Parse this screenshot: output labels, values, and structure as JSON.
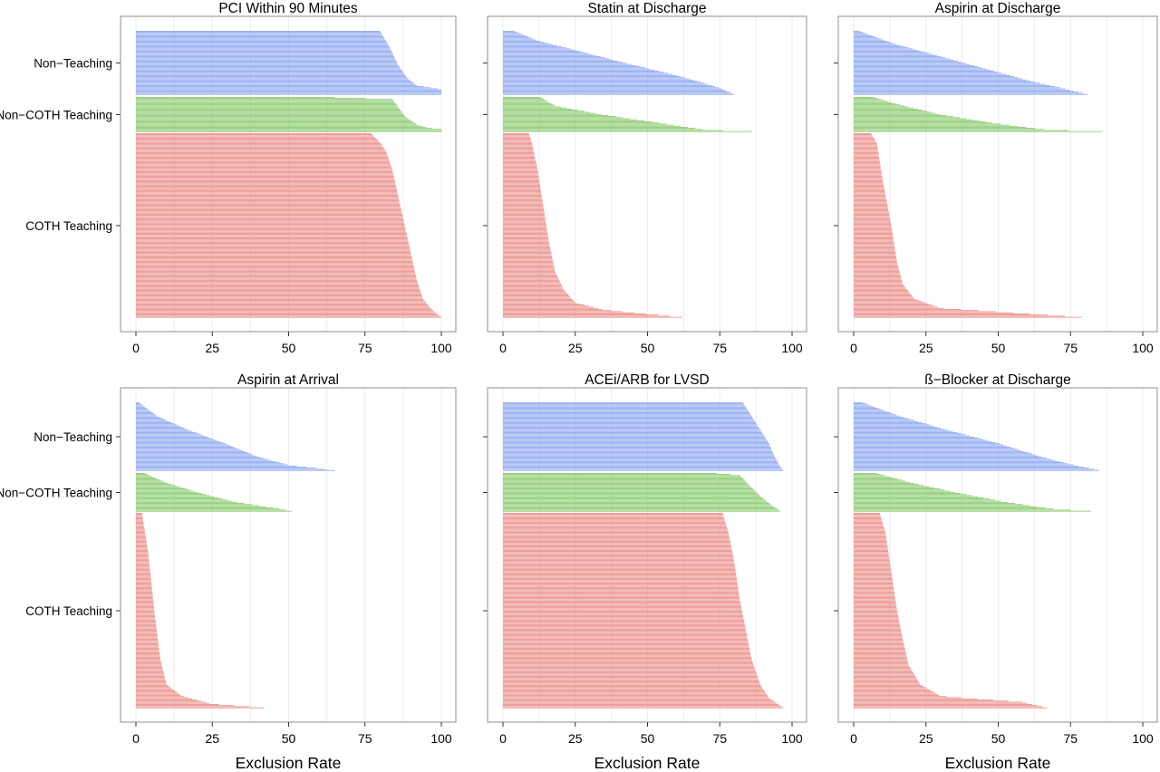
{
  "chart_data": {
    "type": "bar",
    "orientation": "horizontal",
    "xlabel": "Exclusion Rate",
    "xlim": [
      0,
      100
    ],
    "xticks": [
      "0",
      "25",
      "50",
      "75",
      "100"
    ],
    "grid": true,
    "groups": [
      {
        "name": "Non−Teaching",
        "color": "#7f9cef"
      },
      {
        "name": "Non−COTH Teaching",
        "color": "#7ac35b"
      },
      {
        "name": "COTH Teaching",
        "color": "#e8817b"
      }
    ],
    "panels": [
      {
        "title": "PCI Within 90 Minutes",
        "series": [
          {
            "group": "Non−Teaching",
            "curve": [
              [
                0,
                80
              ],
              [
                0.25,
                83
              ],
              [
                0.55,
                86
              ],
              [
                0.75,
                89
              ],
              [
                0.86,
                92
              ],
              [
                0.92,
                100
              ],
              [
                1,
                100
              ]
            ]
          },
          {
            "group": "Non−COTH Teaching",
            "curve": [
              [
                0,
                65
              ],
              [
                0.06,
                84
              ],
              [
                0.3,
                86
              ],
              [
                0.55,
                88
              ],
              [
                0.8,
                92
              ],
              [
                0.9,
                96
              ],
              [
                0.93,
                100
              ],
              [
                1,
                100
              ]
            ]
          },
          {
            "group": "COTH Teaching",
            "curve": [
              [
                0,
                77
              ],
              [
                0.05,
                80
              ],
              [
                0.1,
                82
              ],
              [
                0.2,
                84
              ],
              [
                0.35,
                86
              ],
              [
                0.5,
                88
              ],
              [
                0.65,
                90
              ],
              [
                0.8,
                92
              ],
              [
                0.9,
                94
              ],
              [
                0.96,
                97
              ],
              [
                1,
                100
              ]
            ]
          }
        ]
      },
      {
        "title": "Statin at Discharge",
        "series": [
          {
            "group": "Non−Teaching",
            "curve": [
              [
                0,
                4
              ],
              [
                0.15,
                12
              ],
              [
                0.3,
                25
              ],
              [
                0.5,
                42
              ],
              [
                0.7,
                60
              ],
              [
                0.8,
                68
              ],
              [
                0.9,
                75
              ],
              [
                0.96,
                78
              ],
              [
                1,
                80
              ]
            ]
          },
          {
            "group": "Non−COTH Teaching",
            "curve": [
              [
                0,
                13
              ],
              [
                0.25,
                18
              ],
              [
                0.5,
                34
              ],
              [
                0.7,
                50
              ],
              [
                0.85,
                62
              ],
              [
                0.95,
                70
              ],
              [
                1,
                86
              ]
            ]
          },
          {
            "group": "COTH Teaching",
            "curve": [
              [
                0,
                9
              ],
              [
                0.05,
                10
              ],
              [
                0.2,
                12
              ],
              [
                0.4,
                14
              ],
              [
                0.6,
                16
              ],
              [
                0.75,
                18
              ],
              [
                0.85,
                21
              ],
              [
                0.92,
                25
              ],
              [
                0.96,
                35
              ],
              [
                1,
                62
              ]
            ]
          }
        ]
      },
      {
        "title": "Aspirin at Discharge",
        "series": [
          {
            "group": "Non−Teaching",
            "curve": [
              [
                0,
                2
              ],
              [
                0.2,
                14
              ],
              [
                0.4,
                30
              ],
              [
                0.6,
                46
              ],
              [
                0.8,
                62
              ],
              [
                0.9,
                72
              ],
              [
                0.97,
                78
              ],
              [
                1,
                81
              ]
            ]
          },
          {
            "group": "Non−COTH Teaching",
            "curve": [
              [
                0,
                7
              ],
              [
                0.2,
                15
              ],
              [
                0.5,
                30
              ],
              [
                0.75,
                48
              ],
              [
                0.9,
                62
              ],
              [
                0.95,
                67
              ],
              [
                1,
                86
              ]
            ]
          },
          {
            "group": "COTH Teaching",
            "curve": [
              [
                0,
                6
              ],
              [
                0.05,
                8
              ],
              [
                0.25,
                10
              ],
              [
                0.5,
                13
              ],
              [
                0.7,
                15
              ],
              [
                0.82,
                17
              ],
              [
                0.9,
                21
              ],
              [
                0.95,
                30
              ],
              [
                1,
                79
              ]
            ]
          }
        ]
      },
      {
        "title": "Aspirin at Arrival",
        "series": [
          {
            "group": "Non−Teaching",
            "curve": [
              [
                0,
                1
              ],
              [
                0.2,
                7
              ],
              [
                0.4,
                17
              ],
              [
                0.6,
                29
              ],
              [
                0.8,
                40
              ],
              [
                0.92,
                50
              ],
              [
                1,
                65
              ]
            ]
          },
          {
            "group": "Non−COTH Teaching",
            "curve": [
              [
                0,
                3
              ],
              [
                0.25,
                10
              ],
              [
                0.5,
                20
              ],
              [
                0.75,
                32
              ],
              [
                0.9,
                44
              ],
              [
                1,
                51
              ]
            ]
          },
          {
            "group": "COTH Teaching",
            "curve": [
              [
                0,
                2
              ],
              [
                0.2,
                4
              ],
              [
                0.5,
                6
              ],
              [
                0.75,
                8
              ],
              [
                0.88,
                10
              ],
              [
                0.94,
                15
              ],
              [
                0.98,
                25
              ],
              [
                1,
                42
              ]
            ]
          }
        ]
      },
      {
        "title": "ACEi/ARB for LVSD",
        "series": [
          {
            "group": "Non−Teaching",
            "curve": [
              [
                0,
                83
              ],
              [
                0.2,
                86
              ],
              [
                0.4,
                89
              ],
              [
                0.6,
                92
              ],
              [
                0.8,
                94
              ],
              [
                0.95,
                96
              ],
              [
                1,
                97
              ]
            ]
          },
          {
            "group": "Non−COTH Teaching",
            "curve": [
              [
                0,
                74
              ],
              [
                0.05,
                82
              ],
              [
                0.3,
                85
              ],
              [
                0.6,
                89
              ],
              [
                0.85,
                93
              ],
              [
                1,
                96
              ]
            ]
          },
          {
            "group": "COTH Teaching",
            "curve": [
              [
                0,
                76
              ],
              [
                0.1,
                78
              ],
              [
                0.25,
                80
              ],
              [
                0.45,
                82
              ],
              [
                0.6,
                84
              ],
              [
                0.75,
                86
              ],
              [
                0.88,
                89
              ],
              [
                0.95,
                92
              ],
              [
                1,
                97
              ]
            ]
          }
        ]
      },
      {
        "title": "ß−Blocker at Discharge",
        "series": [
          {
            "group": "Non−Teaching",
            "curve": [
              [
                0,
                3
              ],
              [
                0.2,
                16
              ],
              [
                0.4,
                32
              ],
              [
                0.6,
                50
              ],
              [
                0.8,
                65
              ],
              [
                0.9,
                74
              ],
              [
                1,
                85
              ]
            ]
          },
          {
            "group": "Non−COTH Teaching",
            "curve": [
              [
                0,
                8
              ],
              [
                0.25,
                20
              ],
              [
                0.5,
                35
              ],
              [
                0.75,
                52
              ],
              [
                0.9,
                65
              ],
              [
                0.95,
                70
              ],
              [
                1,
                82
              ]
            ]
          },
          {
            "group": "COTH Teaching",
            "curve": [
              [
                0,
                9
              ],
              [
                0.1,
                11
              ],
              [
                0.3,
                13
              ],
              [
                0.5,
                15
              ],
              [
                0.65,
                17
              ],
              [
                0.78,
                19
              ],
              [
                0.88,
                23
              ],
              [
                0.94,
                30
              ],
              [
                0.97,
                58
              ],
              [
                1,
                67
              ]
            ]
          }
        ]
      }
    ]
  }
}
